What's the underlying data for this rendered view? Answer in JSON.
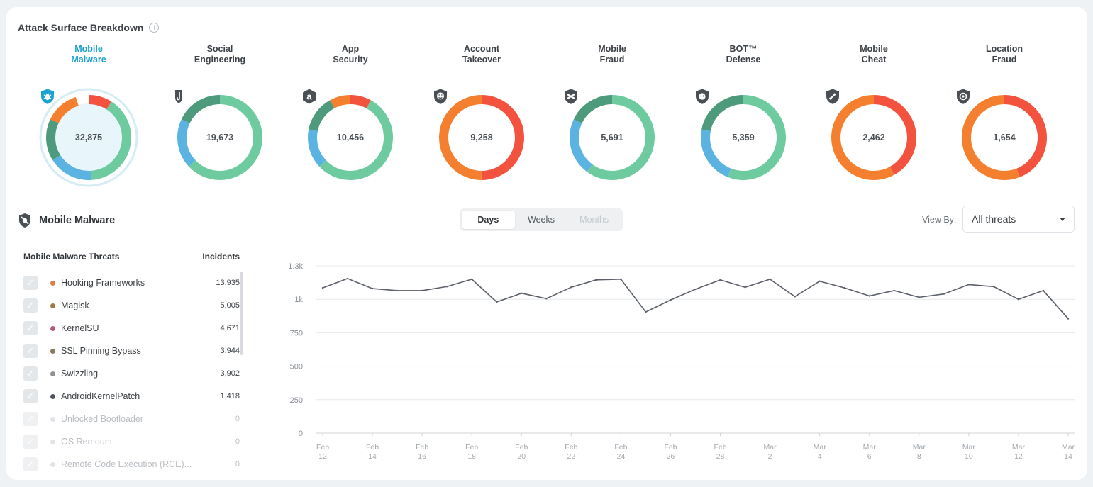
{
  "title": "Attack Surface Breakdown",
  "categories": [
    {
      "line1": "Mobile",
      "line2": "Malware",
      "value": "32,875",
      "icon": "bug-shield-icon",
      "active": true,
      "segments": [
        [
          "#f3533e",
          0.09
        ],
        [
          "#6ecba0",
          0.4
        ],
        [
          "#5ab3e0",
          0.17
        ],
        [
          "#4e9a7c",
          0.16
        ],
        [
          "#f47f2f",
          0.13
        ]
      ]
    },
    {
      "line1": "Social",
      "line2": "Engineering",
      "value": "19,673",
      "icon": "hook-icon",
      "active": false,
      "segments": [
        [
          "#6ecba0",
          0.63
        ],
        [
          "#5ab3e0",
          0.19
        ],
        [
          "#4e9a7c",
          0.18
        ]
      ]
    },
    {
      "line1": "App",
      "line2": "Security",
      "value": "10,456",
      "icon": "app-security-icon",
      "active": false,
      "segments": [
        [
          "#f3533e",
          0.08
        ],
        [
          "#6ecba0",
          0.55
        ],
        [
          "#5ab3e0",
          0.15
        ],
        [
          "#4e9a7c",
          0.14
        ],
        [
          "#f47f2f",
          0.08
        ]
      ]
    },
    {
      "line1": "Account",
      "line2": "Takeover",
      "value": "9,258",
      "icon": "account-takeover-icon",
      "active": false,
      "segments": [
        [
          "#f3533e",
          0.5
        ],
        [
          "#f47f2f",
          0.5
        ]
      ]
    },
    {
      "line1": "Mobile",
      "line2": "Fraud",
      "value": "5,691",
      "icon": "mobile-fraud-icon",
      "active": false,
      "segments": [
        [
          "#6ecba0",
          0.6
        ],
        [
          "#5ab3e0",
          0.22
        ],
        [
          "#4e9a7c",
          0.18
        ]
      ]
    },
    {
      "line1": "BOT™",
      "line2": "Defense",
      "value": "5,359",
      "icon": "bot-defense-icon",
      "active": false,
      "segments": [
        [
          "#6ecba0",
          0.56
        ],
        [
          "#5ab3e0",
          0.22
        ],
        [
          "#4e9a7c",
          0.22
        ]
      ]
    },
    {
      "line1": "Mobile",
      "line2": "Cheat",
      "value": "2,462",
      "icon": "mobile-cheat-icon",
      "active": false,
      "segments": [
        [
          "#f3533e",
          0.42
        ],
        [
          "#f47f2f",
          0.58
        ]
      ]
    },
    {
      "line1": "Location",
      "line2": "Fraud",
      "value": "1,654",
      "icon": "location-fraud-icon",
      "active": false,
      "segments": [
        [
          "#f3533e",
          0.44
        ],
        [
          "#f47f2f",
          0.56
        ]
      ]
    }
  ],
  "section": {
    "title": "Mobile Malware",
    "icon": "mobile-malware-icon"
  },
  "tabs": [
    {
      "label": "Days",
      "state": "active"
    },
    {
      "label": "Weeks",
      "state": "normal"
    },
    {
      "label": "Months",
      "state": "disabled"
    }
  ],
  "view_by": {
    "label": "View By:",
    "value": "All threats"
  },
  "threats": {
    "header_name": "Mobile Malware Threats",
    "header_value": "Incidents",
    "rows": [
      {
        "name": "Hooking Frameworks",
        "value": "13,935",
        "color": "#d9804a",
        "on": true
      },
      {
        "name": "Magisk",
        "value": "5,005",
        "color": "#a27a4a",
        "on": true
      },
      {
        "name": "KernelSU",
        "value": "4,671",
        "color": "#b35a7a",
        "on": true
      },
      {
        "name": "SSL Pinning Bypass",
        "value": "3,944",
        "color": "#8d7a5e",
        "on": true
      },
      {
        "name": "Swizzling",
        "value": "3,902",
        "color": "#8f9291",
        "on": true
      },
      {
        "name": "AndroidKernelPatch",
        "value": "1,418",
        "color": "#4d5560",
        "on": true
      },
      {
        "name": "Unlocked Bootloader",
        "value": "0",
        "color": "#e1e4e7",
        "on": false
      },
      {
        "name": "OS Remount",
        "value": "0",
        "color": "#e1e4e7",
        "on": false
      },
      {
        "name": "Remote Code Execution (RCE)...",
        "value": "0",
        "color": "#e1e4e7",
        "on": false
      }
    ]
  },
  "chart_data": {
    "type": "line",
    "ylim": [
      0,
      1250
    ],
    "yticks": [
      {
        "v": 0,
        "l": "0"
      },
      {
        "v": 250,
        "l": "250"
      },
      {
        "v": 500,
        "l": "500"
      },
      {
        "v": 750,
        "l": "750"
      },
      {
        "v": 1000,
        "l": "1k"
      },
      {
        "v": 1250,
        "l": "1.3k"
      }
    ],
    "xticks": [
      [
        "Feb",
        "12"
      ],
      [
        "Feb",
        "14"
      ],
      [
        "Feb",
        "16"
      ],
      [
        "Feb",
        "18"
      ],
      [
        "Feb",
        "20"
      ],
      [
        "Feb",
        "22"
      ],
      [
        "Feb",
        "24"
      ],
      [
        "Feb",
        "26"
      ],
      [
        "Feb",
        "28"
      ],
      [
        "Mar",
        "2"
      ],
      [
        "Mar",
        "4"
      ],
      [
        "Mar",
        "6"
      ],
      [
        "Mar",
        "8"
      ],
      [
        "Mar",
        "10"
      ],
      [
        "Mar",
        "12"
      ],
      [
        "Mar",
        "14"
      ]
    ],
    "x": [
      "Feb 12",
      "Feb 13",
      "Feb 14",
      "Feb 15",
      "Feb 16",
      "Feb 17",
      "Feb 18",
      "Feb 19",
      "Feb 20",
      "Feb 21",
      "Feb 22",
      "Feb 23",
      "Feb 24",
      "Feb 25",
      "Feb 26",
      "Feb 27",
      "Feb 28",
      "Mar 1",
      "Mar 2",
      "Mar 3",
      "Mar 4",
      "Mar 5",
      "Mar 6",
      "Mar 7",
      "Mar 8",
      "Mar 9",
      "Mar 10",
      "Mar 11",
      "Mar 12",
      "Mar 13",
      "Mar 14"
    ],
    "values": [
      1085,
      1155,
      1080,
      1065,
      1065,
      1095,
      1150,
      980,
      1045,
      1005,
      1090,
      1145,
      1150,
      905,
      995,
      1075,
      1145,
      1090,
      1150,
      1020,
      1135,
      1085,
      1025,
      1065,
      1015,
      1040,
      1110,
      1095,
      1000,
      1065,
      855
    ],
    "line_color": "#5b5f6a"
  }
}
